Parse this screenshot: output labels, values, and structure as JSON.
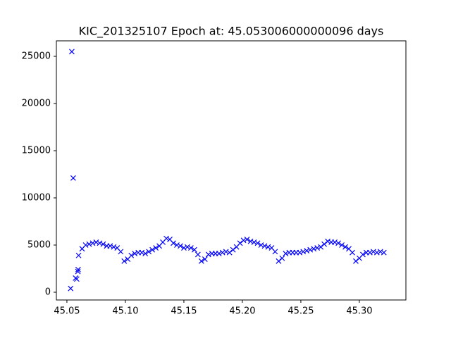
{
  "chart_data": {
    "type": "scatter",
    "title": "KIC_201325107 Epoch at: 45.053006000000096 days",
    "marker": "x",
    "color": "#0000ff",
    "x": [
      45.0532,
      45.0542,
      45.0554,
      45.0574,
      45.0584,
      45.0594,
      45.0596,
      45.06,
      45.063,
      45.066,
      45.069,
      45.072,
      45.075,
      45.078,
      45.081,
      45.084,
      45.087,
      45.09,
      45.093,
      45.096,
      45.099,
      45.102,
      45.105,
      45.108,
      45.111,
      45.114,
      45.117,
      45.12,
      45.123,
      45.126,
      45.129,
      45.132,
      45.135,
      45.138,
      45.141,
      45.144,
      45.147,
      45.15,
      45.153,
      45.156,
      45.159,
      45.162,
      45.165,
      45.168,
      45.171,
      45.174,
      45.177,
      45.18,
      45.183,
      45.186,
      45.189,
      45.192,
      45.195,
      45.198,
      45.201,
      45.204,
      45.207,
      45.21,
      45.213,
      45.216,
      45.219,
      45.222,
      45.225,
      45.228,
      45.231,
      45.234,
      45.237,
      45.24,
      45.243,
      45.246,
      45.249,
      45.252,
      45.255,
      45.258,
      45.261,
      45.264,
      45.267,
      45.27,
      45.273,
      45.276,
      45.279,
      45.282,
      45.285,
      45.288,
      45.291,
      45.294,
      45.297,
      45.3,
      45.303,
      45.306,
      45.309,
      45.312,
      45.315,
      45.318,
      45.321
    ],
    "y": [
      400,
      25500,
      12100,
      1500,
      1400,
      2200,
      2400,
      3900,
      4600,
      5000,
      5100,
      5200,
      5300,
      5200,
      5100,
      4900,
      4900,
      4800,
      4700,
      4300,
      3300,
      3500,
      3900,
      4100,
      4200,
      4200,
      4100,
      4300,
      4500,
      4700,
      4900,
      5300,
      5700,
      5600,
      5200,
      5000,
      4900,
      4700,
      4800,
      4700,
      4500,
      4000,
      3300,
      3500,
      4000,
      4100,
      4100,
      4100,
      4200,
      4300,
      4200,
      4500,
      4800,
      5200,
      5500,
      5600,
      5400,
      5300,
      5200,
      5000,
      4900,
      4800,
      4700,
      4300,
      3300,
      3600,
      4100,
      4200,
      4200,
      4200,
      4200,
      4300,
      4400,
      4500,
      4600,
      4700,
      4800,
      5100,
      5400,
      5300,
      5300,
      5200,
      5000,
      4800,
      4600,
      4200,
      3300,
      3600,
      4000,
      4200,
      4200,
      4300,
      4200,
      4300,
      4200
    ],
    "xlim": [
      45.041,
      45.3398
    ],
    "ylim": [
      -821,
      26642
    ],
    "xticks": [
      45.05,
      {
        "value": 45.1,
        "label": "45.10"
      },
      45.15,
      {
        "value": 45.2,
        "label": "45.20"
      },
      45.25,
      {
        "value": 45.3,
        "label": "45.30"
      }
    ],
    "yticks": [
      0,
      5000,
      10000,
      15000,
      20000,
      25000
    ]
  }
}
